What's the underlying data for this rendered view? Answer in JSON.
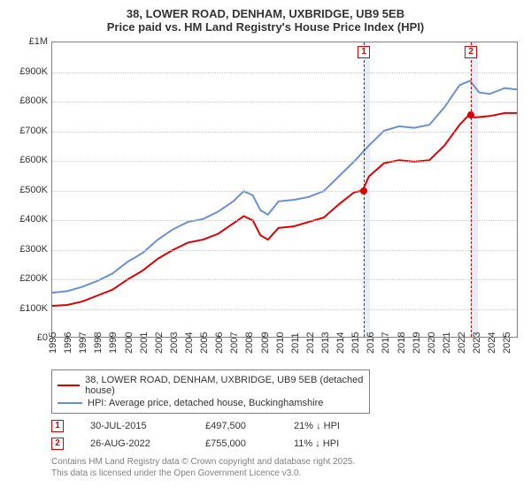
{
  "title_line1": "38, LOWER ROAD, DENHAM, UXBRIDGE, UB9 5EB",
  "title_line2": "Price paid vs. HM Land Registry's House Price Index (HPI)",
  "chart": {
    "type": "line",
    "x_min": 1995,
    "x_max": 2025.8,
    "y_min": 0,
    "y_max": 1000000,
    "y_ticks": [
      0,
      100000,
      200000,
      300000,
      400000,
      500000,
      600000,
      700000,
      800000,
      900000,
      1000000
    ],
    "y_tick_labels": [
      "£0",
      "£100K",
      "£200K",
      "£300K",
      "£400K",
      "£500K",
      "£600K",
      "£700K",
      "£800K",
      "£900K",
      "£1M"
    ],
    "x_ticks": [
      1995,
      1996,
      1997,
      1998,
      1999,
      2000,
      2001,
      2002,
      2003,
      2004,
      2005,
      2006,
      2007,
      2008,
      2009,
      2010,
      2011,
      2012,
      2013,
      2014,
      2015,
      2016,
      2017,
      2018,
      2019,
      2020,
      2021,
      2022,
      2023,
      2024,
      2025
    ],
    "grid_color": "#cccccc",
    "border_color": "#808080",
    "background_color": "#ffffff",
    "shade_color": "#e8eef7",
    "shade_ranges": [
      [
        2015.58,
        2016.0
      ],
      [
        2022.65,
        2023.1
      ]
    ],
    "vdash_color": "#dd0000",
    "vdash_x": [
      2015.58,
      2022.65
    ],
    "series": [
      {
        "name": "price_paid",
        "color": "#dd0000",
        "width": 2,
        "label": "38, LOWER ROAD, DENHAM, UXBRIDGE, UB9 5EB (detached house)",
        "points": [
          [
            1995.0,
            105000
          ],
          [
            1996.0,
            108000
          ],
          [
            1997.0,
            120000
          ],
          [
            1998.0,
            140000
          ],
          [
            1999.0,
            160000
          ],
          [
            2000.0,
            195000
          ],
          [
            2001.0,
            225000
          ],
          [
            2002.0,
            265000
          ],
          [
            2003.0,
            295000
          ],
          [
            2004.0,
            320000
          ],
          [
            2005.0,
            330000
          ],
          [
            2006.0,
            350000
          ],
          [
            2007.0,
            385000
          ],
          [
            2007.7,
            410000
          ],
          [
            2008.3,
            395000
          ],
          [
            2008.8,
            345000
          ],
          [
            2009.3,
            330000
          ],
          [
            2010.0,
            370000
          ],
          [
            2011.0,
            375000
          ],
          [
            2012.0,
            390000
          ],
          [
            2013.0,
            405000
          ],
          [
            2014.0,
            450000
          ],
          [
            2015.0,
            490000
          ],
          [
            2015.58,
            497500
          ],
          [
            2016.0,
            545000
          ],
          [
            2017.0,
            590000
          ],
          [
            2018.0,
            600000
          ],
          [
            2019.0,
            595000
          ],
          [
            2020.0,
            600000
          ],
          [
            2021.0,
            650000
          ],
          [
            2022.0,
            720000
          ],
          [
            2022.65,
            755000
          ],
          [
            2023.0,
            745000
          ],
          [
            2024.0,
            750000
          ],
          [
            2025.0,
            760000
          ],
          [
            2025.8,
            760000
          ]
        ]
      },
      {
        "name": "hpi",
        "color": "#6a8fd4",
        "width": 2,
        "label": "HPI: Average price, detached house, Buckinghamshire",
        "points": [
          [
            1995.0,
            150000
          ],
          [
            1996.0,
            155000
          ],
          [
            1997.0,
            170000
          ],
          [
            1998.0,
            190000
          ],
          [
            1999.0,
            215000
          ],
          [
            2000.0,
            255000
          ],
          [
            2001.0,
            285000
          ],
          [
            2002.0,
            330000
          ],
          [
            2003.0,
            365000
          ],
          [
            2004.0,
            390000
          ],
          [
            2005.0,
            400000
          ],
          [
            2006.0,
            425000
          ],
          [
            2007.0,
            460000
          ],
          [
            2007.7,
            495000
          ],
          [
            2008.3,
            480000
          ],
          [
            2008.8,
            430000
          ],
          [
            2009.3,
            415000
          ],
          [
            2010.0,
            460000
          ],
          [
            2011.0,
            465000
          ],
          [
            2012.0,
            475000
          ],
          [
            2013.0,
            495000
          ],
          [
            2014.0,
            545000
          ],
          [
            2015.0,
            595000
          ],
          [
            2016.0,
            650000
          ],
          [
            2017.0,
            700000
          ],
          [
            2018.0,
            715000
          ],
          [
            2019.0,
            710000
          ],
          [
            2020.0,
            720000
          ],
          [
            2021.0,
            780000
          ],
          [
            2022.0,
            855000
          ],
          [
            2022.7,
            870000
          ],
          [
            2023.3,
            830000
          ],
          [
            2024.0,
            825000
          ],
          [
            2025.0,
            845000
          ],
          [
            2025.8,
            840000
          ]
        ]
      }
    ],
    "markers": [
      {
        "num": "1",
        "x": 2015.58,
        "y": 497500
      },
      {
        "num": "2",
        "x": 2022.65,
        "y": 755000
      }
    ]
  },
  "legend": {
    "items": [
      {
        "color": "#dd0000",
        "label": "38, LOWER ROAD, DENHAM, UXBRIDGE, UB9 5EB (detached house)"
      },
      {
        "color": "#6a8fd4",
        "label": "HPI: Average price, detached house, Buckinghamshire"
      }
    ]
  },
  "sales": [
    {
      "num": "1",
      "date": "30-JUL-2015",
      "price": "£497,500",
      "hpi": "21% ↓ HPI"
    },
    {
      "num": "2",
      "date": "26-AUG-2022",
      "price": "£755,000",
      "hpi": "11% ↓ HPI"
    }
  ],
  "attribution_line1": "Contains HM Land Registry data © Crown copyright and database right 2025.",
  "attribution_line2": "This data is licensed under the Open Government Licence v3.0."
}
